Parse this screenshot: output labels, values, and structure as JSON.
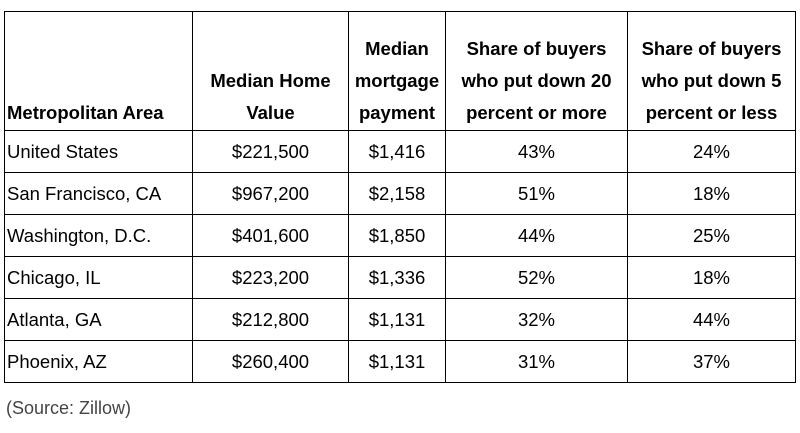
{
  "table": {
    "columns": [
      {
        "lines": [
          "Metropolitan Area"
        ]
      },
      {
        "lines": [
          "Median Home",
          "Value"
        ]
      },
      {
        "lines": [
          "Median",
          "mortgage",
          "payment"
        ]
      },
      {
        "lines": [
          "Share of buyers",
          "who put down 20",
          "percent or more"
        ]
      },
      {
        "lines": [
          "Share of buyers",
          "who put down 5",
          "percent or less"
        ]
      }
    ],
    "rows": [
      [
        "United States",
        "$221,500",
        "$1,416",
        "43%",
        "24%"
      ],
      [
        "San Francisco, CA",
        "$967,200",
        "$2,158",
        "51%",
        "18%"
      ],
      [
        "Washington, D.C.",
        "$401,600",
        "$1,850",
        "44%",
        "25%"
      ],
      [
        "Chicago, IL",
        "$223,200",
        "$1,336",
        "52%",
        "18%"
      ],
      [
        "Atlanta, GA",
        "$212,800",
        "$1,131",
        "32%",
        "44%"
      ],
      [
        "Phoenix, AZ",
        "$260,400",
        "$1,131",
        "31%",
        "37%"
      ]
    ]
  },
  "source": "(Source: Zillow)"
}
